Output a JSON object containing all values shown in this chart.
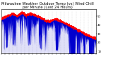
{
  "title": "Milwaukee Weather Outdoor Temp (vs) Wind Chill per Minute (Last 24 Hours)",
  "bg_color": "#ffffff",
  "plot_bg_color": "#ffffff",
  "line_color_temp": "#ff0000",
  "fill_color_wind": "#0000cd",
  "grid_color": "#bbbbbb",
  "ylabel_color": "#000000",
  "ymin": 8,
  "ymax": 58,
  "ytick_vals": [
    10,
    20,
    30,
    40,
    50
  ],
  "num_points": 1440,
  "title_fontsize": 3.8,
  "tick_fontsize": 2.8
}
